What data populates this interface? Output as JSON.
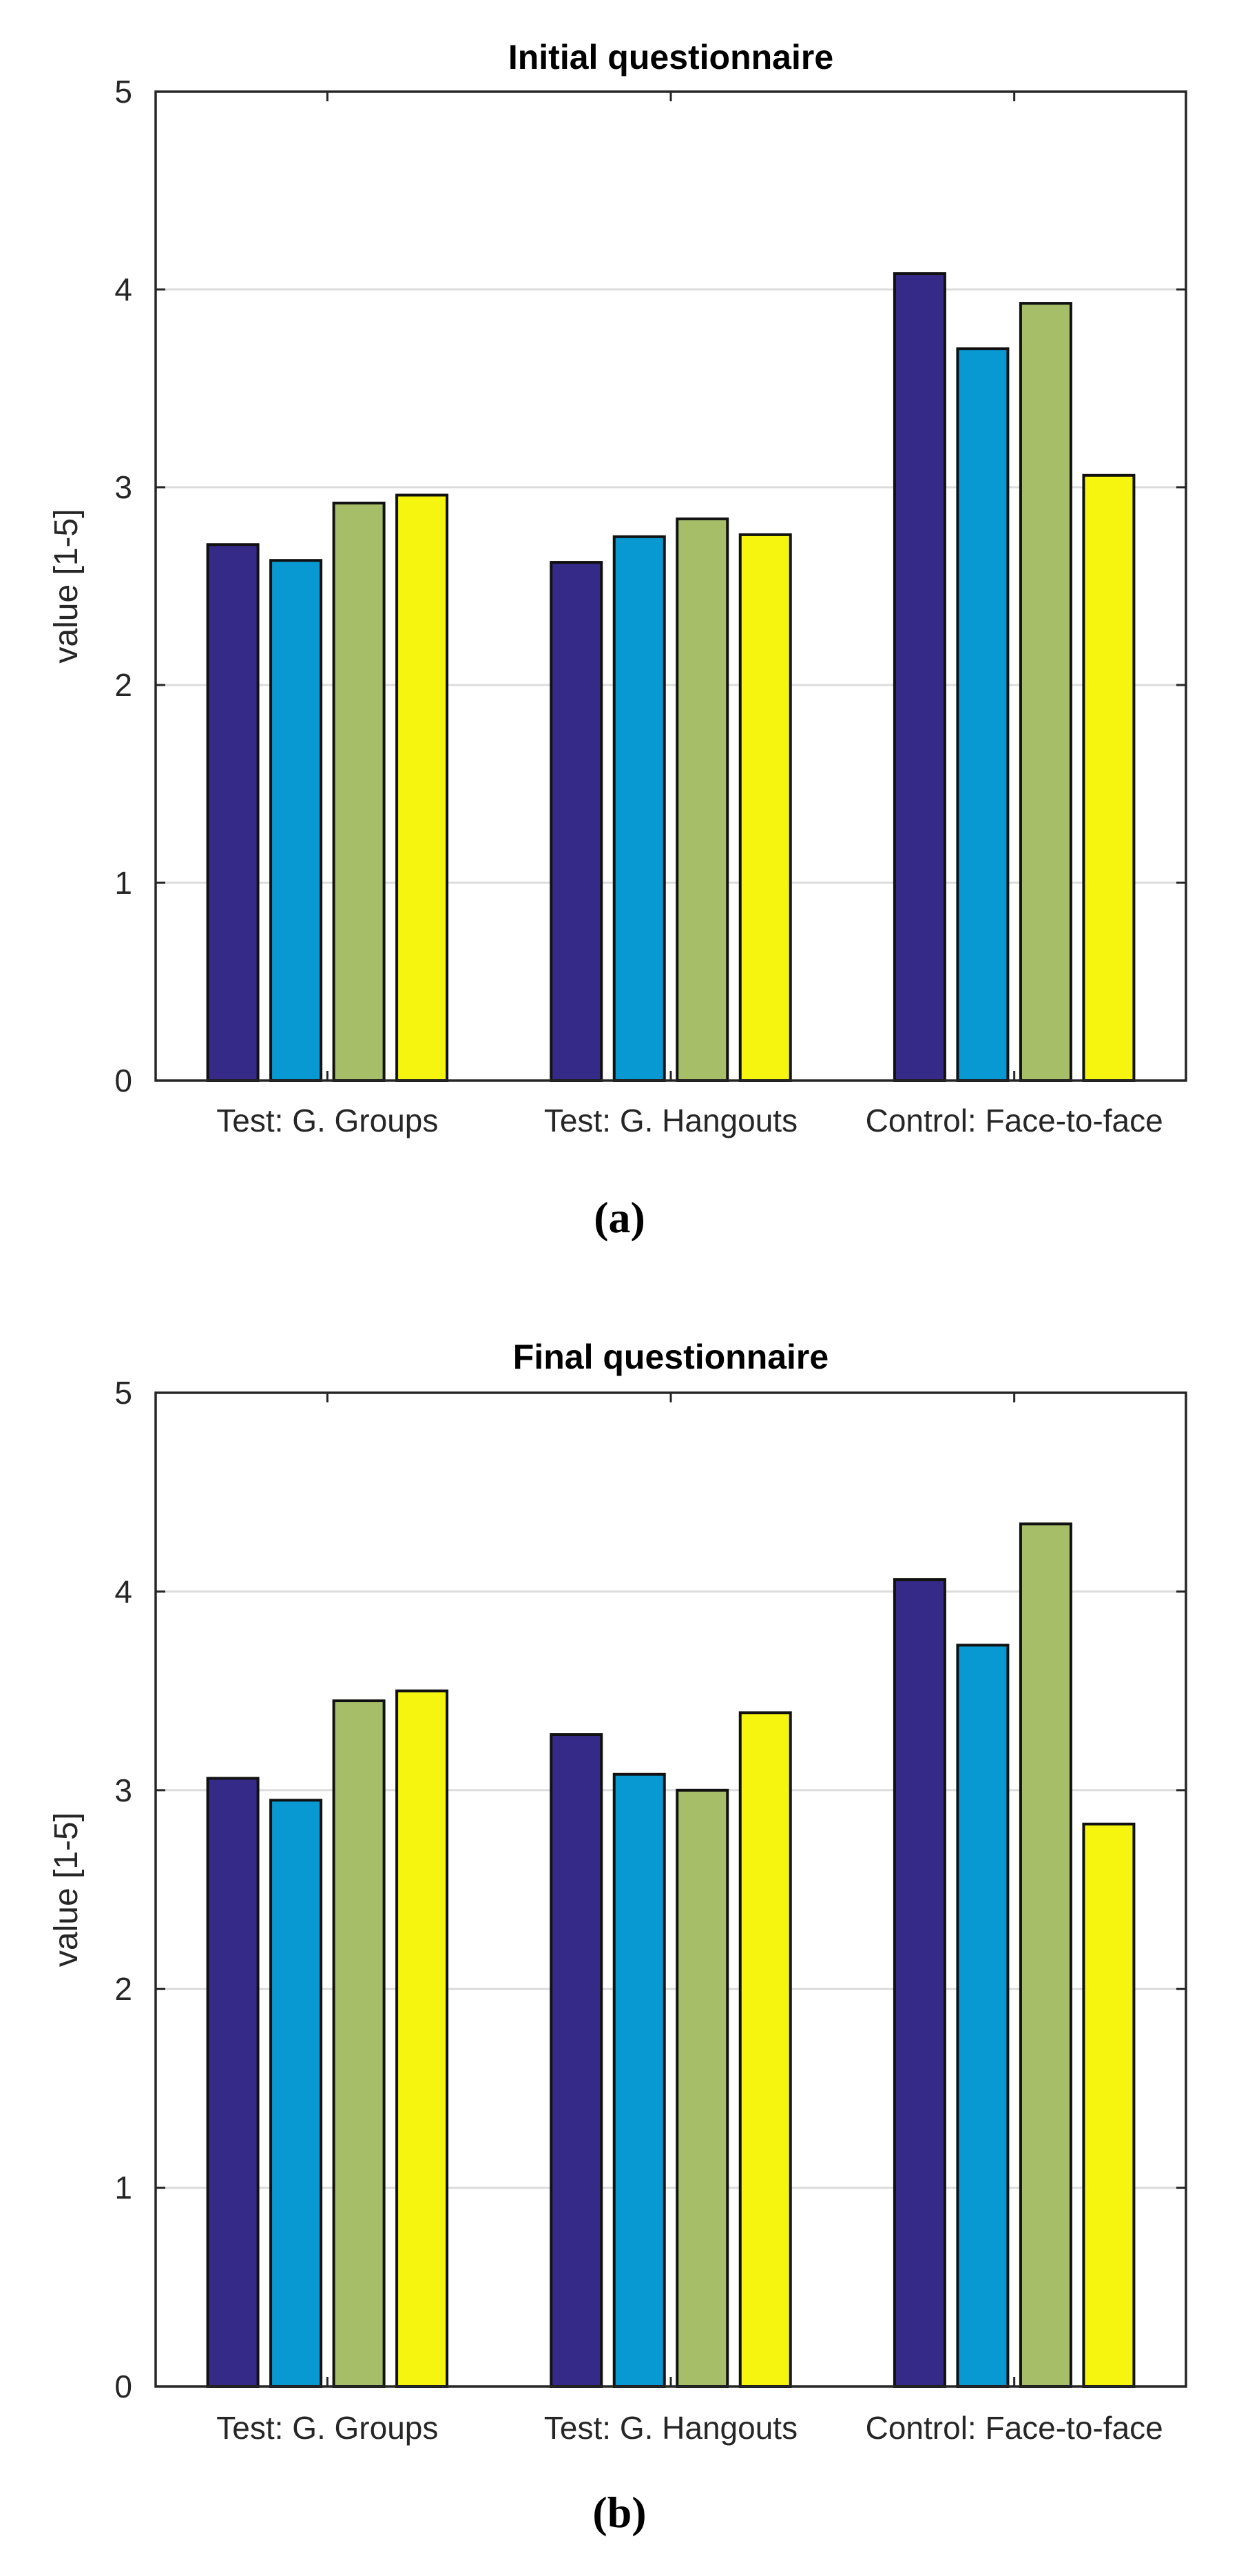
{
  "colors": {
    "series": [
      "#352a87",
      "#0899d3",
      "#a5be67",
      "#f5f50f"
    ],
    "grid": "#dcdcdc",
    "axis": "#262626"
  },
  "chart_data": [
    {
      "type": "bar",
      "title": "Initial questionnaire",
      "caption": "(a)",
      "xlabel": "",
      "ylabel": "value [1-5]",
      "ylim": [
        0,
        5
      ],
      "yticks": [
        0,
        1,
        2,
        3,
        4,
        5
      ],
      "grid": true,
      "categories": [
        "Test: G. Groups",
        "Test: G. Hangouts",
        "Control: Face-to-face"
      ],
      "series": [
        {
          "name": "series 1",
          "values": [
            2.71,
            2.62,
            4.08
          ]
        },
        {
          "name": "series 2",
          "values": [
            2.63,
            2.75,
            3.7
          ]
        },
        {
          "name": "series 3",
          "values": [
            2.92,
            2.84,
            3.93
          ]
        },
        {
          "name": "series 4",
          "values": [
            2.96,
            2.76,
            3.06
          ]
        }
      ]
    },
    {
      "type": "bar",
      "title": "Final questionnaire",
      "caption": "(b)",
      "xlabel": "",
      "ylabel": "value [1-5]",
      "ylim": [
        0,
        5
      ],
      "yticks": [
        0,
        1,
        2,
        3,
        4,
        5
      ],
      "grid": true,
      "categories": [
        "Test: G. Groups",
        "Test: G. Hangouts",
        "Control: Face-to-face"
      ],
      "series": [
        {
          "name": "series 1",
          "values": [
            3.06,
            3.28,
            4.06
          ]
        },
        {
          "name": "series 2",
          "values": [
            2.95,
            3.08,
            3.73
          ]
        },
        {
          "name": "series 3",
          "values": [
            3.45,
            3.0,
            4.34
          ]
        },
        {
          "name": "series 4",
          "values": [
            3.5,
            3.39,
            2.83
          ]
        }
      ]
    }
  ]
}
